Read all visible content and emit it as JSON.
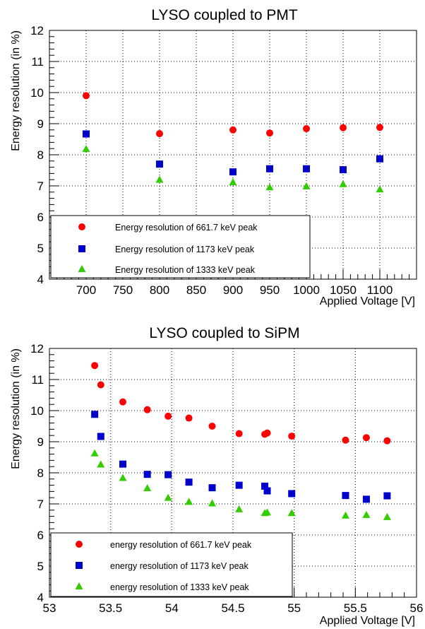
{
  "chart_data": [
    {
      "type": "scatter",
      "title": "LYSO coupled to PMT",
      "xlabel": "Applied Voltage [V]",
      "ylabel": "Energy resolution (in %)",
      "xlim": [
        650,
        1150
      ],
      "ylim": [
        4,
        12
      ],
      "xticks": [
        700,
        750,
        800,
        850,
        900,
        950,
        1000,
        1050,
        1100
      ],
      "yticks": [
        4,
        5,
        6,
        7,
        8,
        9,
        10,
        11,
        12
      ],
      "grid": true,
      "legend_position": "bottom-left",
      "series": [
        {
          "name": "Energy resolution of 661.7 keV peak",
          "marker": "circle",
          "color": "#ff0000",
          "x": [
            700,
            800,
            900,
            950,
            1000,
            1050,
            1100
          ],
          "y": [
            9.9,
            8.68,
            8.8,
            8.7,
            8.84,
            8.87,
            8.88
          ]
        },
        {
          "name": "Energy resolution of 1173 keV peak",
          "marker": "square",
          "color": "#0000cc",
          "x": [
            700,
            800,
            900,
            950,
            1000,
            1050,
            1100
          ],
          "y": [
            8.67,
            7.7,
            7.45,
            7.55,
            7.55,
            7.52,
            7.87
          ]
        },
        {
          "name": "Energy resolution of 1333 keV peak",
          "marker": "triangle",
          "color": "#33cc00",
          "x": [
            700,
            800,
            900,
            950,
            1000,
            1050,
            1100
          ],
          "y": [
            8.18,
            7.19,
            7.11,
            6.95,
            6.98,
            7.05,
            6.88
          ]
        }
      ]
    },
    {
      "type": "scatter",
      "title": "LYSO coupled to SiPM",
      "xlabel": "Applied Voltage [V]",
      "ylabel": "Energy resolution (in %)",
      "xlim": [
        53,
        56
      ],
      "ylim": [
        4,
        12
      ],
      "xticks": [
        53,
        53.5,
        54,
        54.5,
        55,
        55.5,
        56
      ],
      "yticks": [
        4,
        5,
        6,
        7,
        8,
        9,
        10,
        11,
        12
      ],
      "grid": true,
      "legend_position": "bottom-left",
      "series": [
        {
          "name": "energy resolution of 661.7 keV peak",
          "marker": "circle",
          "color": "#ff0000",
          "x": [
            53.37,
            53.42,
            53.6,
            53.8,
            53.97,
            54.14,
            54.33,
            54.55,
            54.76,
            54.78,
            54.98,
            55.42,
            55.59,
            55.76
          ],
          "y": [
            11.45,
            10.83,
            10.28,
            10.03,
            9.82,
            9.76,
            9.5,
            9.26,
            9.24,
            9.28,
            9.18,
            9.05,
            9.13,
            9.03
          ]
        },
        {
          "name": "energy resolution of 1173 keV peak",
          "marker": "square",
          "color": "#0000cc",
          "x": [
            53.37,
            53.42,
            53.6,
            53.8,
            53.97,
            54.14,
            54.33,
            54.55,
            54.76,
            54.78,
            54.98,
            55.42,
            55.59,
            55.76
          ],
          "y": [
            9.88,
            9.17,
            8.28,
            7.95,
            7.94,
            7.7,
            7.52,
            7.6,
            7.57,
            7.42,
            7.33,
            7.27,
            7.15,
            7.26
          ]
        },
        {
          "name": "energy resolution of 1333 keV peak",
          "marker": "triangle",
          "color": "#33cc00",
          "x": [
            53.37,
            53.42,
            53.6,
            53.8,
            53.97,
            54.14,
            54.33,
            54.55,
            54.76,
            54.78,
            54.98,
            55.42,
            55.59,
            55.76
          ],
          "y": [
            8.62,
            8.26,
            7.83,
            7.5,
            7.19,
            7.06,
            7.01,
            6.82,
            6.7,
            6.72,
            6.7,
            6.62,
            6.64,
            6.57
          ]
        }
      ]
    }
  ]
}
